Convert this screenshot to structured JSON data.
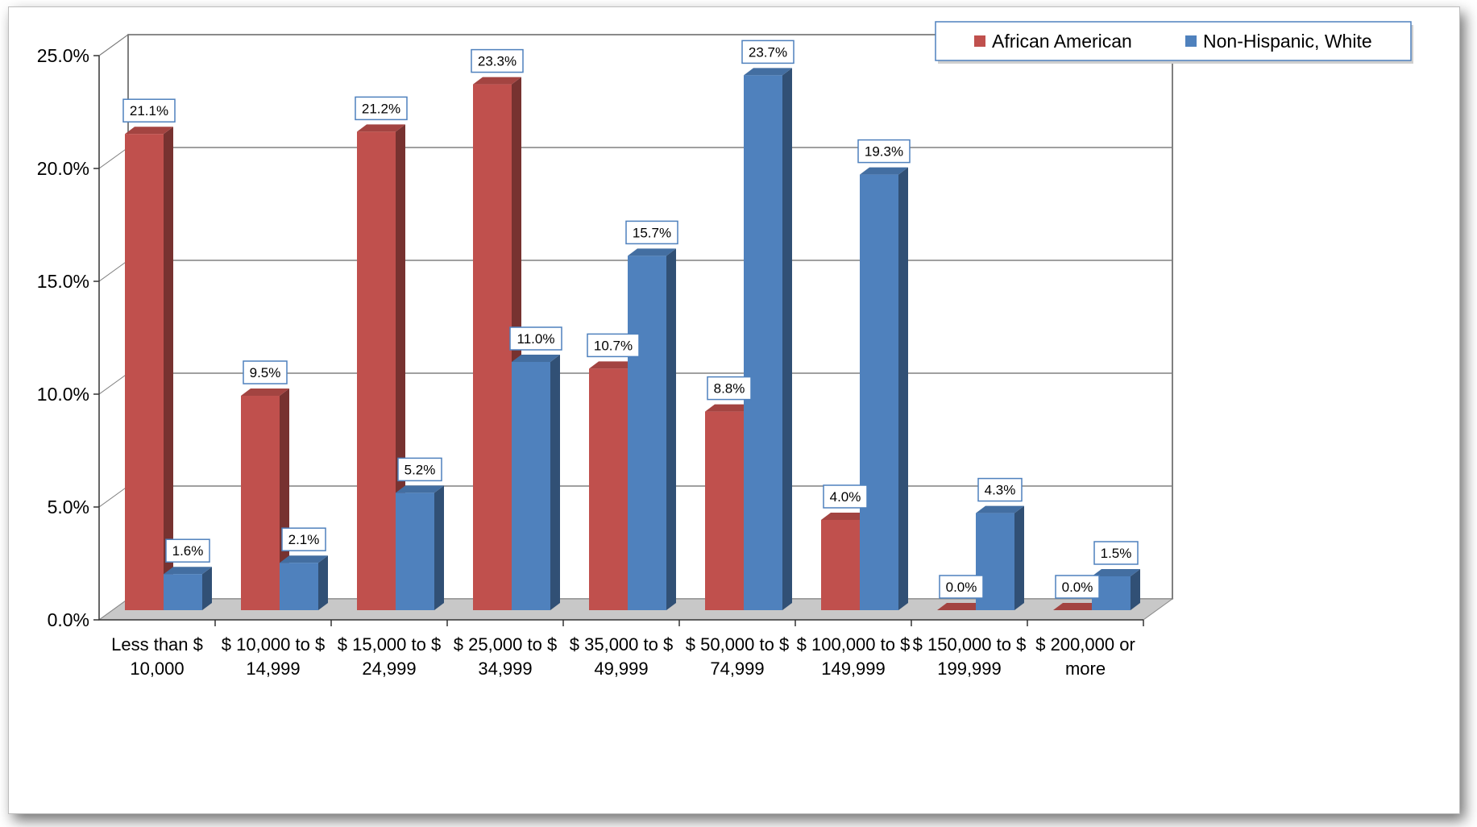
{
  "chart_data": {
    "type": "bar",
    "categories": [
      [
        "Less than $",
        "10,000"
      ],
      [
        "$ 10,000 to $",
        "14,999"
      ],
      [
        "$ 15,000 to  $",
        "24,999"
      ],
      [
        "$ 25,000 to $",
        "34,999"
      ],
      [
        "$ 35,000 to $",
        "49,999"
      ],
      [
        "$ 50,000 to $",
        "74,999"
      ],
      [
        "$ 100,000 to $",
        "149,999"
      ],
      [
        "$ 150,000 to $",
        "199,999"
      ],
      [
        "$ 200,000 or",
        "more"
      ]
    ],
    "series": [
      {
        "name": "African American",
        "color": "#c0504d",
        "values": [
          21.1,
          9.5,
          21.2,
          23.3,
          10.7,
          8.8,
          4.0,
          0.0,
          0.0
        ],
        "labels": [
          "21.1%",
          "9.5%",
          "21.2%",
          "23.3%",
          "10.7%",
          "8.8%",
          "4.0%",
          "0.0%",
          "0.0%"
        ]
      },
      {
        "name": "Non-Hispanic, White",
        "color": "#4f81bd",
        "values": [
          1.6,
          2.1,
          5.2,
          11.0,
          15.7,
          23.7,
          19.3,
          4.3,
          1.5
        ],
        "labels": [
          "1.6%",
          "2.1%",
          "5.2%",
          "11.0%",
          "15.7%",
          "23.7%",
          "19.3%",
          "4.3%",
          "1.5%"
        ]
      }
    ],
    "yticks": [
      "0.0%",
      "5.0%",
      "10.0%",
      "15.0%",
      "20.0%",
      "25.0%"
    ],
    "ylim": [
      0,
      25
    ],
    "grid": true,
    "legend": "top-right",
    "style": "3d-clustered-column"
  }
}
